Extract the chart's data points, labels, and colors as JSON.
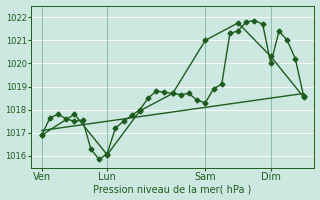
{
  "background_color": "#cce8e0",
  "grid_color": "#b0d4cc",
  "line_color": "#1e5c1e",
  "xlabel": "Pression niveau de la mer( hPa )",
  "ylim": [
    1015.5,
    1022.5
  ],
  "yticks": [
    1016,
    1017,
    1018,
    1019,
    1020,
    1021,
    1022
  ],
  "day_labels": [
    "Ven",
    "Lun",
    "Sam",
    "Dim"
  ],
  "day_positions": [
    0,
    24,
    60,
    84
  ],
  "vline_positions": [
    0,
    24,
    60,
    84
  ],
  "xlim": [
    -4,
    100
  ],
  "line1_x": [
    0,
    3,
    6,
    9,
    12,
    15,
    18,
    21,
    24,
    27,
    30,
    33,
    36,
    39,
    42,
    45,
    48,
    51,
    54,
    57,
    60,
    63,
    66,
    69,
    72,
    75,
    78,
    81,
    84,
    87,
    90,
    93,
    96
  ],
  "line1_y": [
    1016.9,
    1017.65,
    1017.8,
    1017.6,
    1017.5,
    1017.55,
    1016.3,
    1015.85,
    1016.1,
    1017.2,
    1017.5,
    1017.75,
    1018.0,
    1018.5,
    1018.8,
    1018.75,
    1018.7,
    1018.65,
    1018.7,
    1018.4,
    1018.3,
    1018.9,
    1019.1,
    1021.3,
    1021.4,
    1021.8,
    1021.85,
    1021.7,
    1020.0,
    1021.4,
    1021.0,
    1020.2,
    1018.6
  ],
  "line2_x": [
    0,
    12,
    24,
    36,
    48,
    60,
    72,
    84,
    96
  ],
  "line2_y": [
    1016.9,
    1017.8,
    1016.05,
    1017.95,
    1018.7,
    1021.0,
    1021.75,
    1020.3,
    1018.55
  ],
  "trend_x": [
    0,
    96
  ],
  "trend_y": [
    1017.1,
    1018.7
  ],
  "marker": "D",
  "markersize": 2.5,
  "linewidth": 1.0,
  "ylabel_fontsize": 6,
  "xlabel_fontsize": 7,
  "tick_fontsize": 6
}
